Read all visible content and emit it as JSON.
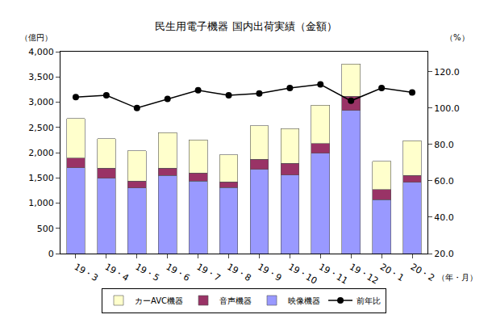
{
  "chart_data": {
    "type": "bar",
    "title": "民生用電子機器 国内出荷実績（金額）",
    "ylabel": "（億円）",
    "y2label": "（%）",
    "xlabel": "（年・月）",
    "categories": [
      "19・3",
      "19・4",
      "19・5",
      "19・6",
      "19・7",
      "19・8",
      "19・9",
      "19・10",
      "19・11",
      "19・12",
      "20・1",
      "20・2"
    ],
    "stacked": true,
    "grid": false,
    "legend": "bottom",
    "series": [
      {
        "name": "カーAVC機器",
        "color": "#ffffcc",
        "values": [
          790,
          590,
          600,
          710,
          650,
          540,
          660,
          690,
          760,
          640,
          560,
          690
        ]
      },
      {
        "name": "音声機器",
        "color": "#993366",
        "values": [
          190,
          200,
          140,
          140,
          160,
          110,
          200,
          230,
          190,
          280,
          200,
          140
        ]
      },
      {
        "name": "映像機器",
        "color": "#9999ff",
        "values": [
          1700,
          1490,
          1300,
          1550,
          1440,
          1310,
          1670,
          1560,
          1990,
          2840,
          1070,
          1410
        ]
      },
      {
        "name": "前年比",
        "type": "line",
        "axis": "y2",
        "color": "#000000",
        "marker": "circle",
        "values": [
          106,
          107,
          100,
          105,
          109.8,
          107,
          108,
          111,
          113,
          104,
          111,
          108.6
        ]
      }
    ],
    "ylim": [
      0,
      4000
    ],
    "yticks": [
      0,
      500,
      {
        "value": 1000,
        "label": "1,000"
      },
      {
        "value": 1500,
        "label": "1,500"
      },
      {
        "value": 2000,
        "label": "2,000"
      },
      {
        "value": 2500,
        "label": "2,500"
      },
      {
        "value": 3000,
        "label": "3,000"
      },
      {
        "value": 3500,
        "label": "3,500"
      },
      {
        "value": 4000,
        "label": "4,000"
      }
    ],
    "y2lim": [
      20,
      131
    ],
    "y2ticks": [
      {
        "value": 20,
        "label": "20.0"
      },
      {
        "value": 40,
        "label": "40.0"
      },
      {
        "value": 60,
        "label": "60.0"
      },
      {
        "value": 80,
        "label": "80.0"
      },
      {
        "value": 100,
        "label": "100.0"
      },
      {
        "value": 120,
        "label": "120.0"
      }
    ]
  }
}
